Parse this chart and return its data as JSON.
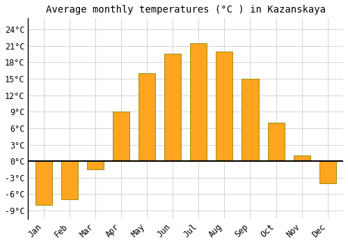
{
  "title": "Average monthly temperatures (°C ) in Kazanskaya",
  "months": [
    "Jan",
    "Feb",
    "Mar",
    "Apr",
    "May",
    "Jun",
    "Jul",
    "Aug",
    "Sep",
    "Oct",
    "Nov",
    "Dec"
  ],
  "temperatures": [
    -8,
    -7,
    -1.5,
    9,
    16,
    19.5,
    21.5,
    20,
    15,
    7,
    1,
    -4
  ],
  "bar_color": "#FFA520",
  "bar_edge_color": "#888800",
  "background_color": "#FFFFFF",
  "grid_color": "#CCCCCC",
  "yticks": [
    -9,
    -6,
    -3,
    0,
    3,
    6,
    9,
    12,
    15,
    18,
    21,
    24
  ],
  "ylim": [
    -10.5,
    26
  ],
  "title_fontsize": 10,
  "tick_fontsize": 8.5,
  "zero_line_color": "#000000",
  "axis_line_color": "#000000",
  "bar_width": 0.65
}
